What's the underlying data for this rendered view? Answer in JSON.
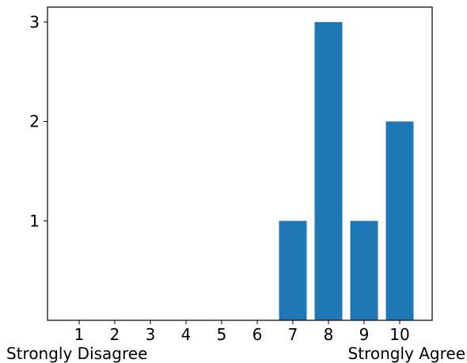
{
  "chart_data": {
    "type": "bar",
    "title": "",
    "xlabel": "",
    "ylabel": "",
    "categories": [
      "1",
      "2",
      "3",
      "4",
      "5",
      "6",
      "7",
      "8",
      "9",
      "10"
    ],
    "values": [
      0,
      0,
      0,
      0,
      0,
      0,
      1,
      3,
      1,
      2
    ],
    "ylim": [
      0,
      3.15
    ],
    "yticks": [
      1,
      2,
      3
    ],
    "bar_color": "#1f77b4",
    "grid": false,
    "legend": "none",
    "scale_labels": {
      "low": "Strongly Disagree",
      "high": "Strongly Agree"
    }
  }
}
